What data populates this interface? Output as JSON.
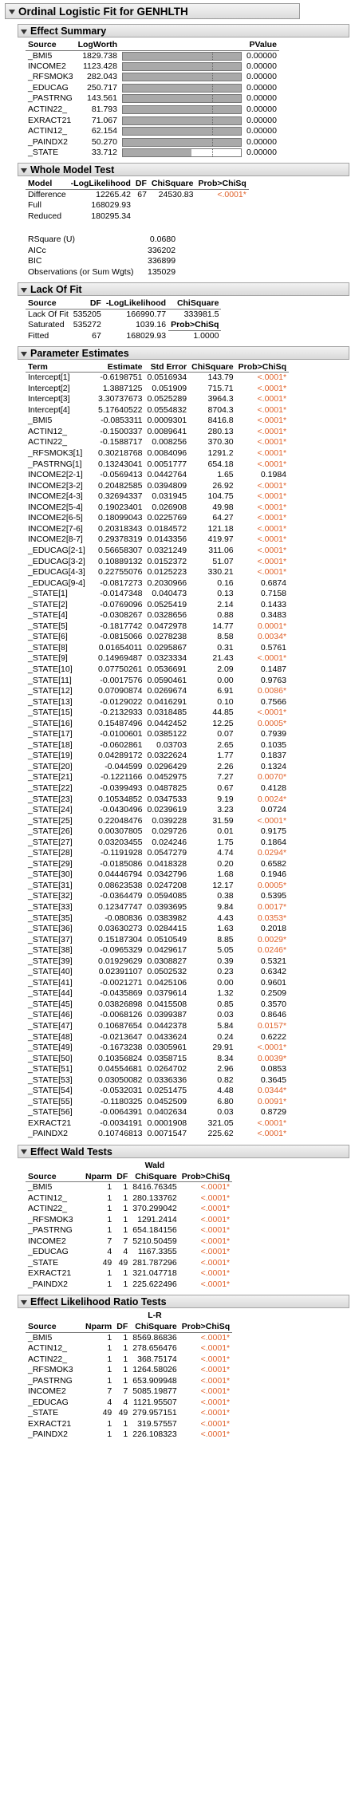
{
  "report": {
    "title": "Ordinal Logistic Fit for GENHLTH"
  },
  "effect_summary": {
    "title": "Effect Summary",
    "columns": [
      "Source",
      "LogWorth",
      "",
      "PValue"
    ],
    "rows": [
      {
        "source": "_BMI5",
        "logworth": "1829.738",
        "pvalue": "0.00000",
        "level": 1.0
      },
      {
        "source": "INCOME2",
        "logworth": "1123.428",
        "pvalue": "0.00000",
        "level": 1.0
      },
      {
        "source": "_RFSMOK3",
        "logworth": "282.043",
        "pvalue": "0.00000",
        "level": 1.0
      },
      {
        "source": "_EDUCAG",
        "logworth": "250.717",
        "pvalue": "0.00000",
        "level": 1.0
      },
      {
        "source": "_PASTRNG",
        "logworth": "143.561",
        "pvalue": "0.00000",
        "level": 1.0
      },
      {
        "source": "ACTIN22_",
        "logworth": "81.793",
        "pvalue": "0.00000",
        "level": 1.0
      },
      {
        "source": "EXRACT21",
        "logworth": "71.067",
        "pvalue": "0.00000",
        "level": 1.0
      },
      {
        "source": "ACTIN12_",
        "logworth": "62.154",
        "pvalue": "0.00000",
        "level": 1.0
      },
      {
        "source": "_PAINDX2",
        "logworth": "50.270",
        "pvalue": "0.00000",
        "level": 1.0
      },
      {
        "source": "_STATE",
        "logworth": "33.712",
        "pvalue": "0.00000",
        "level": 0.58
      }
    ]
  },
  "whole_model": {
    "title": "Whole Model Test",
    "columns": [
      "Model",
      "-LogLikelihood",
      "DF",
      "ChiSquare",
      "Prob>ChiSq"
    ],
    "rows": [
      {
        "model": "Difference",
        "ll": "12265.42",
        "df": "67",
        "chisq": "24530.83",
        "prob": "<.0001"
      },
      {
        "model": "Full",
        "ll": "168029.93",
        "df": "",
        "chisq": "",
        "prob": ""
      },
      {
        "model": "Reduced",
        "ll": "180295.34",
        "df": "",
        "chisq": "",
        "prob": ""
      }
    ],
    "stats": [
      {
        "label": "RSquare (U)",
        "value": "0.0680"
      },
      {
        "label": "AICc",
        "value": "336202"
      },
      {
        "label": "BIC",
        "value": "336899"
      },
      {
        "label": "Observations (or Sum Wgts)",
        "value": "135029"
      }
    ]
  },
  "lack_of_fit": {
    "title": "Lack Of Fit",
    "columns": [
      "Source",
      "DF",
      "-LogLikelihood",
      "ChiSquare"
    ],
    "rows": [
      {
        "source": "Lack Of Fit",
        "df": "535205",
        "ll": "166990.77",
        "chisq": "333981.5"
      },
      {
        "source": "Saturated",
        "df": "535272",
        "ll": "1039.16",
        "chisq": "Prob>ChiSq"
      },
      {
        "source": "Fitted",
        "df": "67",
        "ll": "168029.93",
        "chisq": "1.0000"
      }
    ]
  },
  "parameter_estimates": {
    "title": "Parameter Estimates",
    "columns": [
      "Term",
      "Estimate",
      "Std Error",
      "ChiSquare",
      "Prob>ChiSq"
    ],
    "rows": [
      [
        "Intercept[1]",
        "-0.6198751",
        "0.0516934",
        "143.79",
        "<.0001"
      ],
      [
        "Intercept[2]",
        "1.3887125",
        "0.051909",
        "715.71",
        "<.0001"
      ],
      [
        "Intercept[3]",
        "3.30737673",
        "0.0525289",
        "3964.3",
        "<.0001"
      ],
      [
        "Intercept[4]",
        "5.17640522",
        "0.0554832",
        "8704.3",
        "<.0001"
      ],
      [
        "_BMI5",
        "-0.0853311",
        "0.0009301",
        "8416.8",
        "<.0001"
      ],
      [
        "ACTIN12_",
        "-0.1500337",
        "0.0089641",
        "280.13",
        "<.0001"
      ],
      [
        "ACTIN22_",
        "-0.1588717",
        "0.008256",
        "370.30",
        "<.0001"
      ],
      [
        "_RFSMOK3[1]",
        "0.30218768",
        "0.0084096",
        "1291.2",
        "<.0001"
      ],
      [
        "_PASTRNG[1]",
        "0.13243041",
        "0.0051777",
        "654.18",
        "<.0001"
      ],
      [
        "INCOME2[2-1]",
        "-0.0569413",
        "0.0442764",
        "1.65",
        "0.1984"
      ],
      [
        "INCOME2[3-2]",
        "0.20482585",
        "0.0394809",
        "26.92",
        "<.0001"
      ],
      [
        "INCOME2[4-3]",
        "0.32694337",
        "0.031945",
        "104.75",
        "<.0001"
      ],
      [
        "INCOME2[5-4]",
        "0.19023401",
        "0.026908",
        "49.98",
        "<.0001"
      ],
      [
        "INCOME2[6-5]",
        "0.18099043",
        "0.0225769",
        "64.27",
        "<.0001"
      ],
      [
        "INCOME2[7-6]",
        "0.20318343",
        "0.0184572",
        "121.18",
        "<.0001"
      ],
      [
        "INCOME2[8-7]",
        "0.29378319",
        "0.0143356",
        "419.97",
        "<.0001"
      ],
      [
        "_EDUCAG[2-1]",
        "0.56658307",
        "0.0321249",
        "311.06",
        "<.0001"
      ],
      [
        "_EDUCAG[3-2]",
        "0.10889132",
        "0.0152372",
        "51.07",
        "<.0001"
      ],
      [
        "_EDUCAG[4-3]",
        "0.22755076",
        "0.0125223",
        "330.21",
        "<.0001"
      ],
      [
        "_EDUCAG[9-4]",
        "-0.0817273",
        "0.2030966",
        "0.16",
        "0.6874"
      ],
      [
        "_STATE[1]",
        "-0.0147348",
        "0.040473",
        "0.13",
        "0.7158"
      ],
      [
        "_STATE[2]",
        "-0.0769096",
        "0.0525419",
        "2.14",
        "0.1433"
      ],
      [
        "_STATE[4]",
        "-0.0308267",
        "0.0328656",
        "0.88",
        "0.3483"
      ],
      [
        "_STATE[5]",
        "-0.1817742",
        "0.0472978",
        "14.77",
        "0.0001"
      ],
      [
        "_STATE[6]",
        "-0.0815066",
        "0.0278238",
        "8.58",
        "0.0034"
      ],
      [
        "_STATE[8]",
        "0.01654011",
        "0.0295867",
        "0.31",
        "0.5761"
      ],
      [
        "_STATE[9]",
        "0.14969487",
        "0.0323334",
        "21.43",
        "<.0001"
      ],
      [
        "_STATE[10]",
        "0.07750261",
        "0.0536691",
        "2.09",
        "0.1487"
      ],
      [
        "_STATE[11]",
        "-0.0017576",
        "0.0590461",
        "0.00",
        "0.9763"
      ],
      [
        "_STATE[12]",
        "0.07090874",
        "0.0269674",
        "6.91",
        "0.0086"
      ],
      [
        "_STATE[13]",
        "-0.0129022",
        "0.0416291",
        "0.10",
        "0.7566"
      ],
      [
        "_STATE[15]",
        "-0.2132933",
        "0.0318485",
        "44.85",
        "<.0001"
      ],
      [
        "_STATE[16]",
        "0.15487496",
        "0.0442452",
        "12.25",
        "0.0005"
      ],
      [
        "_STATE[17]",
        "-0.0100601",
        "0.0385122",
        "0.07",
        "0.7939"
      ],
      [
        "_STATE[18]",
        "-0.0602861",
        "0.03703",
        "2.65",
        "0.1035"
      ],
      [
        "_STATE[19]",
        "0.04289172",
        "0.0322624",
        "1.77",
        "0.1837"
      ],
      [
        "_STATE[20]",
        "-0.044599",
        "0.0296429",
        "2.26",
        "0.1324"
      ],
      [
        "_STATE[21]",
        "-0.1221166",
        "0.0452975",
        "7.27",
        "0.0070"
      ],
      [
        "_STATE[22]",
        "-0.0399493",
        "0.0487825",
        "0.67",
        "0.4128"
      ],
      [
        "_STATE[23]",
        "0.10534852",
        "0.0347533",
        "9.19",
        "0.0024"
      ],
      [
        "_STATE[24]",
        "-0.0430496",
        "0.0239619",
        "3.23",
        "0.0724"
      ],
      [
        "_STATE[25]",
        "0.22048476",
        "0.039228",
        "31.59",
        "<.0001"
      ],
      [
        "_STATE[26]",
        "0.00307805",
        "0.029726",
        "0.01",
        "0.9175"
      ],
      [
        "_STATE[27]",
        "0.03203455",
        "0.024246",
        "1.75",
        "0.1864"
      ],
      [
        "_STATE[28]",
        "-0.1191928",
        "0.0547279",
        "4.74",
        "0.0294"
      ],
      [
        "_STATE[29]",
        "-0.0185086",
        "0.0418328",
        "0.20",
        "0.6582"
      ],
      [
        "_STATE[30]",
        "0.04446794",
        "0.0342796",
        "1.68",
        "0.1946"
      ],
      [
        "_STATE[31]",
        "0.08623538",
        "0.0247208",
        "12.17",
        "0.0005"
      ],
      [
        "_STATE[32]",
        "-0.0364479",
        "0.0594085",
        "0.38",
        "0.5395"
      ],
      [
        "_STATE[33]",
        "0.12347747",
        "0.0393695",
        "9.84",
        "0.0017"
      ],
      [
        "_STATE[35]",
        "-0.080836",
        "0.0383982",
        "4.43",
        "0.0353"
      ],
      [
        "_STATE[36]",
        "0.03630273",
        "0.0284415",
        "1.63",
        "0.2018"
      ],
      [
        "_STATE[37]",
        "0.15187304",
        "0.0510549",
        "8.85",
        "0.0029"
      ],
      [
        "_STATE[38]",
        "-0.0965329",
        "0.0429617",
        "5.05",
        "0.0246"
      ],
      [
        "_STATE[39]",
        "0.01929629",
        "0.0308827",
        "0.39",
        "0.5321"
      ],
      [
        "_STATE[40]",
        "0.02391107",
        "0.0502532",
        "0.23",
        "0.6342"
      ],
      [
        "_STATE[41]",
        "-0.0021271",
        "0.0425106",
        "0.00",
        "0.9601"
      ],
      [
        "_STATE[44]",
        "-0.0435869",
        "0.0379614",
        "1.32",
        "0.2509"
      ],
      [
        "_STATE[45]",
        "0.03826898",
        "0.0415508",
        "0.85",
        "0.3570"
      ],
      [
        "_STATE[46]",
        "-0.0068126",
        "0.0399387",
        "0.03",
        "0.8646"
      ],
      [
        "_STATE[47]",
        "0.10687654",
        "0.0442378",
        "5.84",
        "0.0157"
      ],
      [
        "_STATE[48]",
        "-0.0213647",
        "0.0433624",
        "0.24",
        "0.6222"
      ],
      [
        "_STATE[49]",
        "-0.1673238",
        "0.0305961",
        "29.91",
        "<.0001"
      ],
      [
        "_STATE[50]",
        "0.10356824",
        "0.0358715",
        "8.34",
        "0.0039"
      ],
      [
        "_STATE[51]",
        "0.04554681",
        "0.0264702",
        "2.96",
        "0.0853"
      ],
      [
        "_STATE[53]",
        "0.03050082",
        "0.0336336",
        "0.82",
        "0.3645"
      ],
      [
        "_STATE[54]",
        "-0.0532031",
        "0.0251475",
        "4.48",
        "0.0344"
      ],
      [
        "_STATE[55]",
        "-0.1180325",
        "0.0452509",
        "6.80",
        "0.0091"
      ],
      [
        "_STATE[56]",
        "-0.0064391",
        "0.0402634",
        "0.03",
        "0.8729"
      ],
      [
        "EXRACT21",
        "-0.0034191",
        "0.0001908",
        "321.05",
        "<.0001"
      ],
      [
        "_PAINDX2",
        "0.10746813",
        "0.0071547",
        "225.62",
        "<.0001"
      ]
    ]
  },
  "wald": {
    "title": "Effect Wald Tests",
    "col_super": "Wald",
    "columns": [
      "Source",
      "Nparm",
      "DF",
      "ChiSquare",
      "Prob>ChiSq"
    ],
    "rows": [
      [
        "_BMI5",
        "1",
        "1",
        "8416.76345",
        "<.0001"
      ],
      [
        "ACTIN12_",
        "1",
        "1",
        "280.133762",
        "<.0001"
      ],
      [
        "ACTIN22_",
        "1",
        "1",
        "370.299042",
        "<.0001"
      ],
      [
        "_RFSMOK3",
        "1",
        "1",
        "1291.2414",
        "<.0001"
      ],
      [
        "_PASTRNG",
        "1",
        "1",
        "654.184156",
        "<.0001"
      ],
      [
        "INCOME2",
        "7",
        "7",
        "5210.50459",
        "<.0001"
      ],
      [
        "_EDUCAG",
        "4",
        "4",
        "1167.3355",
        "<.0001"
      ],
      [
        "_STATE",
        "49",
        "49",
        "281.787296",
        "<.0001"
      ],
      [
        "EXRACT21",
        "1",
        "1",
        "321.047718",
        "<.0001"
      ],
      [
        "_PAINDX2",
        "1",
        "1",
        "225.622496",
        "<.0001"
      ]
    ]
  },
  "lr": {
    "title": "Effect Likelihood Ratio Tests",
    "col_super": "L-R",
    "columns": [
      "Source",
      "Nparm",
      "DF",
      "ChiSquare",
      "Prob>ChiSq"
    ],
    "rows": [
      [
        "_BMI5",
        "1",
        "1",
        "8569.86836",
        "<.0001"
      ],
      [
        "ACTIN12_",
        "1",
        "1",
        "278.656476",
        "<.0001"
      ],
      [
        "ACTIN22_",
        "1",
        "1",
        "368.75174",
        "<.0001"
      ],
      [
        "_RFSMOK3",
        "1",
        "1",
        "1264.58026",
        "<.0001"
      ],
      [
        "_PASTRNG",
        "1",
        "1",
        "653.909948",
        "<.0001"
      ],
      [
        "INCOME2",
        "7",
        "7",
        "5085.19877",
        "<.0001"
      ],
      [
        "_EDUCAG",
        "4",
        "4",
        "1121.95507",
        "<.0001"
      ],
      [
        "_STATE",
        "49",
        "49",
        "279.957151",
        "<.0001"
      ],
      [
        "EXRACT21",
        "1",
        "1",
        "319.57557",
        "<.0001"
      ],
      [
        "_PAINDX2",
        "1",
        "1",
        "226.108323",
        "<.0001"
      ]
    ]
  },
  "colors": {
    "significant": "#e0622b",
    "bar_fill": "#a9a9a9"
  }
}
